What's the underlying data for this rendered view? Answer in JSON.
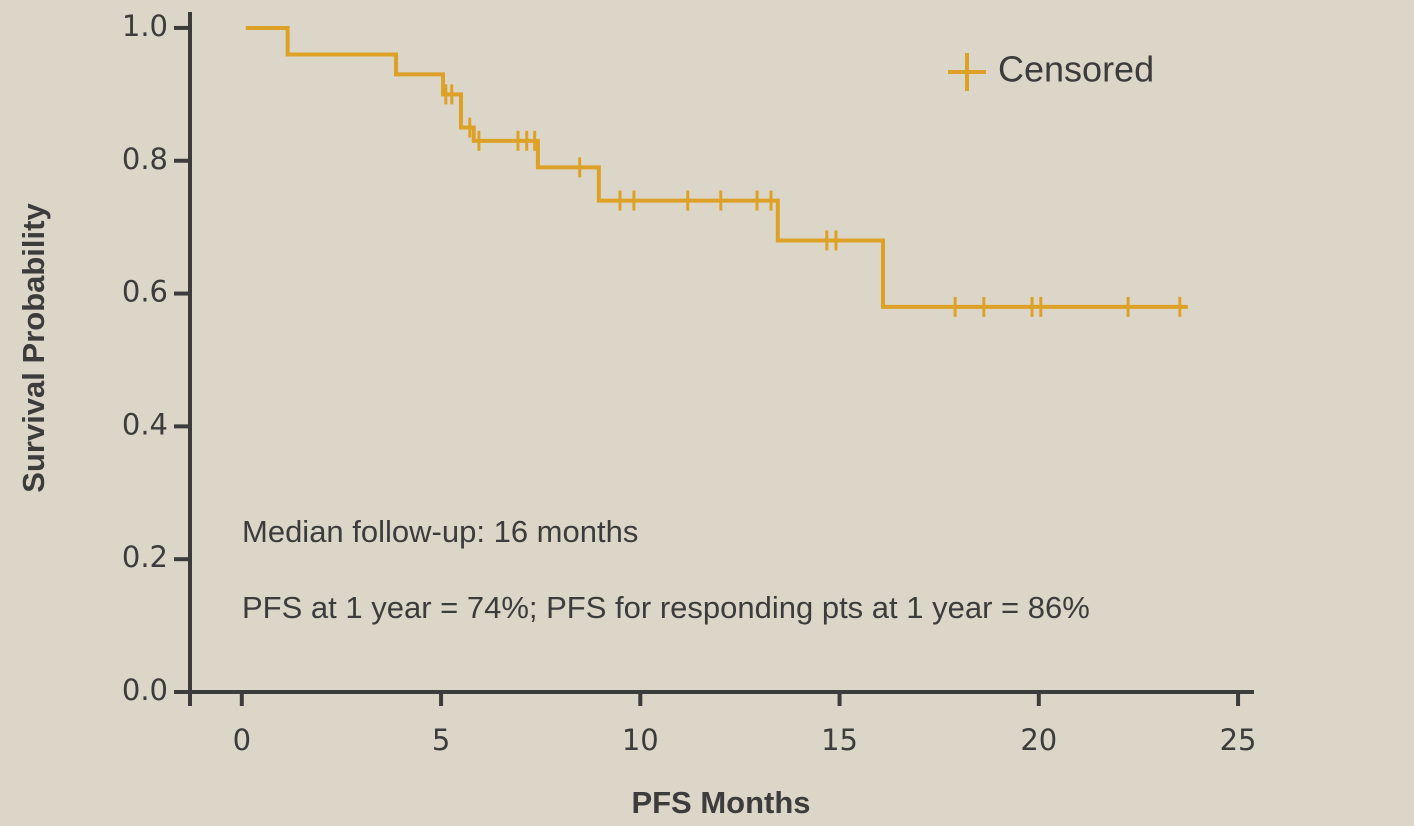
{
  "chart_data": {
    "type": "km",
    "xlabel": "PFS Months",
    "ylabel": "Survival Probability",
    "xlim": [
      -1.3,
      25.4
    ],
    "ylim": [
      0,
      1.024
    ],
    "xticks": [
      0,
      5,
      10,
      15,
      20,
      25
    ],
    "yticks": [
      {
        "value": 0,
        "label": "0.0"
      },
      0.2,
      0.4,
      0.6,
      0.8,
      {
        "value": 1,
        "label": "1.0"
      }
    ],
    "color": "#dea128",
    "series": [
      {
        "name": "survival",
        "x": [
          0.1,
          1.15,
          3.87,
          5.05,
          5.5,
          5.82,
          7.43,
          8.96,
          13.45,
          16.09,
          23.74
        ],
        "values": [
          1.0,
          0.96,
          0.93,
          0.9,
          0.85,
          0.83,
          0.79,
          0.74,
          0.68,
          0.58,
          0.58
        ]
      },
      {
        "name": "Censored",
        "x": [
          5.12,
          5.27,
          5.72,
          5.95,
          6.93,
          7.15,
          7.35,
          8.48,
          9.49,
          9.84,
          11.19,
          12.02,
          12.93,
          13.28,
          14.68,
          14.91,
          17.9,
          18.62,
          19.83,
          20.05,
          22.24,
          23.54
        ],
        "values": [
          0.9,
          0.9,
          0.85,
          0.83,
          0.83,
          0.83,
          0.83,
          0.79,
          0.74,
          0.74,
          0.74,
          0.74,
          0.74,
          0.74,
          0.68,
          0.68,
          0.58,
          0.58,
          0.58,
          0.58,
          0.58,
          0.58
        ]
      }
    ],
    "annotations": [
      "Median follow-up: 16 months",
      "PFS at 1 year = 74%; PFS for responding pts at 1 year = 86%"
    ]
  }
}
